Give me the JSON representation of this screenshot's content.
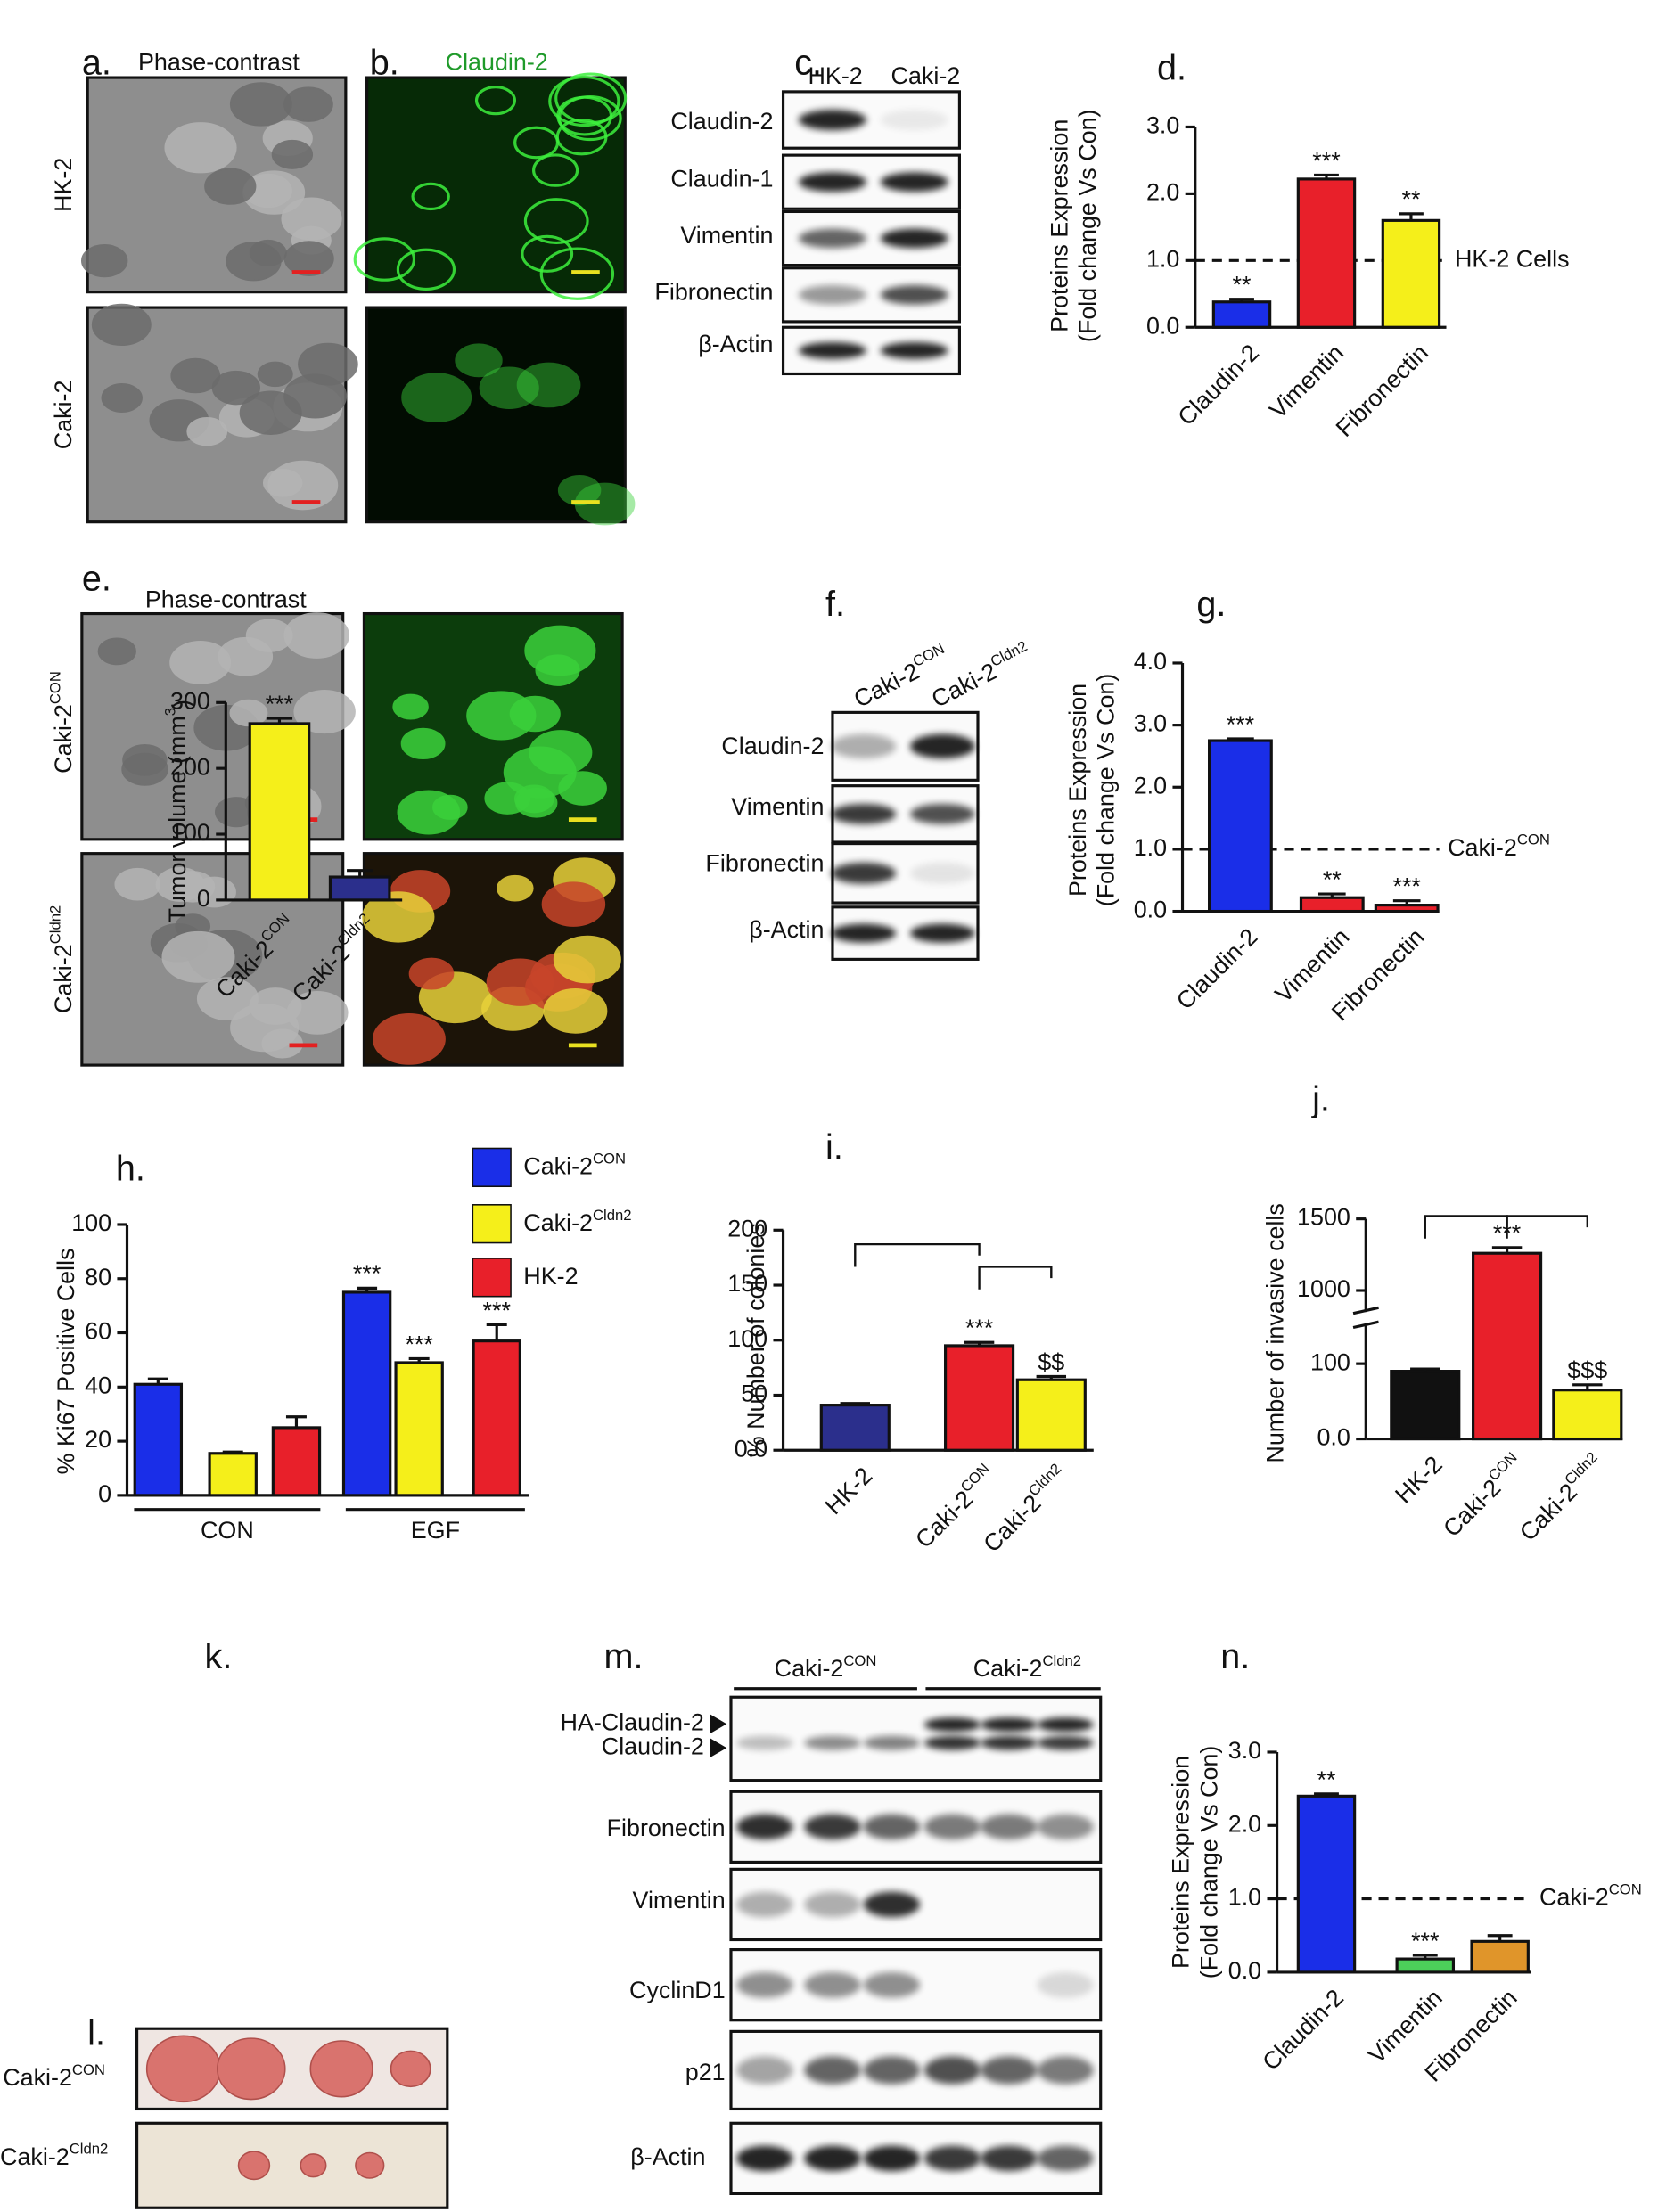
{
  "panel_labels": [
    "a.",
    "b.",
    "c.",
    "d.",
    "e.",
    "f.",
    "g.",
    "h.",
    "i.",
    "j.",
    "k.",
    "l.",
    "m.",
    "n."
  ],
  "image_panels": {
    "a": {
      "title": "Phase-contrast",
      "rows": [
        "HK-2",
        "Caki-2"
      ]
    },
    "b": {
      "title": "Claudin-2"
    },
    "e": {
      "title": "Phase-contrast",
      "rows": [
        "Caki-2CON",
        "Caki-2Cldn2"
      ]
    },
    "l": {
      "rows": [
        "Caki-2CON",
        "Caki-2Cldn2"
      ]
    }
  },
  "blots": {
    "c": {
      "lanes": [
        "HK-2",
        "Caki-2"
      ],
      "rows": [
        "Claudin-2",
        "Claudin-1",
        "Vimentin",
        "Fibronectin",
        "β-Actin"
      ]
    },
    "f": {
      "lanes": [
        "Caki-2CON",
        "Caki-2Cldn2"
      ],
      "rows": [
        "Claudin-2",
        "Vimentin",
        "Fibronectin",
        "β-Actin"
      ]
    },
    "m": {
      "groups": [
        "Caki-2CON",
        "Caki-2Cldn2"
      ],
      "rows": [
        "HA-Claudin-2",
        "Claudin-2",
        "Fibronectin",
        "Vimentin",
        "CyclinD1",
        "p21",
        "β-Actin"
      ]
    }
  },
  "chart_data": [
    {
      "type": "bar",
      "ylabel": [
        "Proteins Expression",
        "(Fold change Vs Con)"
      ],
      "categories": [
        "Claudin-2",
        "Vimentin",
        "Fibronectin"
      ],
      "values": [
        0.38,
        2.22,
        1.6
      ],
      "errors": [
        0.04,
        0.06,
        0.1
      ],
      "colors": [
        "#1a2ee8",
        "#e8202a",
        "#f5ef1a"
      ],
      "annotations": [
        "**",
        "***",
        "**"
      ],
      "ylim": [
        0,
        3
      ],
      "yticks": [
        {
          "value": 0,
          "label": "0.0"
        },
        {
          "value": 1,
          "label": "1.0"
        },
        {
          "value": 2,
          "label": "2.0"
        },
        {
          "value": 3,
          "label": "3.0"
        }
      ],
      "reference_line": {
        "value": 1,
        "label": "HK-2 Cells"
      }
    },
    {
      "type": "bar",
      "ylabel": [
        "Proteins Expression",
        "(Fold change Vs Con)"
      ],
      "categories": [
        "Claudin-2",
        "Vimentin",
        "Fibronectin"
      ],
      "values": [
        2.75,
        0.22,
        0.1
      ],
      "errors": [
        0.03,
        0.06,
        0.07
      ],
      "colors": [
        "#1a2ee8",
        "#e8202a",
        "#e8202a"
      ],
      "annotations": [
        "***",
        "**",
        "***"
      ],
      "ylim": [
        0,
        4
      ],
      "yticks": [
        {
          "value": 0,
          "label": "0.0"
        },
        {
          "value": 1,
          "label": "1.0"
        },
        {
          "value": 2,
          "label": "2.0"
        },
        {
          "value": 3,
          "label": "3.0"
        },
        {
          "value": 4,
          "label": "4.0"
        }
      ],
      "reference_line": {
        "value": 1,
        "label": "Caki-2CON"
      }
    },
    {
      "type": "grouped_bar",
      "ylabel": [
        "% Ki67 Positive Cells"
      ],
      "categories": [
        "CON",
        "EGF"
      ],
      "series": [
        {
          "name": "Caki-2CON",
          "color": "#1a2ee8",
          "values": [
            41,
            75
          ],
          "errors": [
            2,
            1.5
          ],
          "annotations": [
            null,
            "***"
          ]
        },
        {
          "name": "Caki-2Cldn2",
          "color": "#f5ef1a",
          "values": [
            15.5,
            49
          ],
          "errors": [
            0.5,
            1.5
          ],
          "annotations": [
            null,
            "***"
          ]
        },
        {
          "name": "HK-2",
          "color": "#e8202a",
          "values": [
            25,
            57
          ],
          "errors": [
            4,
            6
          ],
          "annotations": [
            null,
            "***"
          ]
        }
      ],
      "ylim": [
        0,
        100
      ],
      "yticks": [
        0,
        20,
        40,
        60,
        80,
        100
      ]
    },
    {
      "type": "bar",
      "ylabel": [
        "% Number of colonies"
      ],
      "categories": [
        "HK-2",
        "Caki-2CON",
        "Caki-2Cldn2"
      ],
      "values": [
        41,
        95,
        64
      ],
      "errors": [
        1.5,
        3,
        3
      ],
      "colors": [
        "#2b2f8c",
        "#e8202a",
        "#f5ef1a"
      ],
      "annotations": [
        null,
        "***",
        "$$"
      ],
      "ylim": [
        0,
        200
      ],
      "yticks": [
        {
          "value": 0,
          "label": "0.0"
        },
        50,
        100,
        150,
        200
      ]
    },
    {
      "type": "bar",
      "ylabel": [
        "Number of invasive cells"
      ],
      "categories": [
        "HK-2",
        "Caki-2CON",
        "Caki-2Cldn2"
      ],
      "values": [
        90,
        1260,
        65
      ],
      "errors": [
        3,
        40,
        7
      ],
      "colors": [
        "#111111",
        "#e8202a",
        "#f5ef1a"
      ],
      "annotations": [
        null,
        "***",
        "$$$"
      ],
      "ylim": [
        0,
        1500
      ],
      "ybreak": [
        150,
        850
      ],
      "yticks": [
        {
          "value": 0,
          "label": "0.0"
        },
        100,
        1000,
        1500
      ]
    },
    {
      "type": "bar",
      "ylabel": [
        {
          "text": "Tumor volume (mm"
        },
        {
          "text": "3",
          "sup": true
        },
        {
          "text": ")"
        }
      ],
      "categories": [
        "Caki-2CON",
        "Caki-2Cldn2"
      ],
      "values": [
        268,
        35
      ],
      "errors": [
        8,
        10
      ],
      "colors": [
        "#f5ef1a",
        "#2b2f8c"
      ],
      "annotations": [
        "***",
        null
      ],
      "ylim": [
        0,
        300
      ],
      "yticks": [
        0,
        100,
        200,
        300
      ]
    },
    {
      "type": "bar",
      "ylabel": [
        "Proteins Expression",
        "(Fold change Vs Con)"
      ],
      "categories": [
        "Claudin-2",
        "Vimentin",
        "Fibronectin"
      ],
      "values": [
        2.4,
        0.18,
        0.42
      ],
      "errors": [
        0.03,
        0.05,
        0.08
      ],
      "colors": [
        "#1a2ee8",
        "#4ccf5a",
        "#e0952a"
      ],
      "annotations": [
        "**",
        "***",
        null
      ],
      "ylim": [
        0,
        3
      ],
      "yticks": [
        {
          "value": 0,
          "label": "0.0"
        },
        {
          "value": 1,
          "label": "1.0"
        },
        {
          "value": 2,
          "label": "2.0"
        },
        {
          "value": 3,
          "label": "3.0"
        }
      ],
      "reference_line": {
        "value": 1,
        "label": "Caki-2CON"
      }
    }
  ]
}
